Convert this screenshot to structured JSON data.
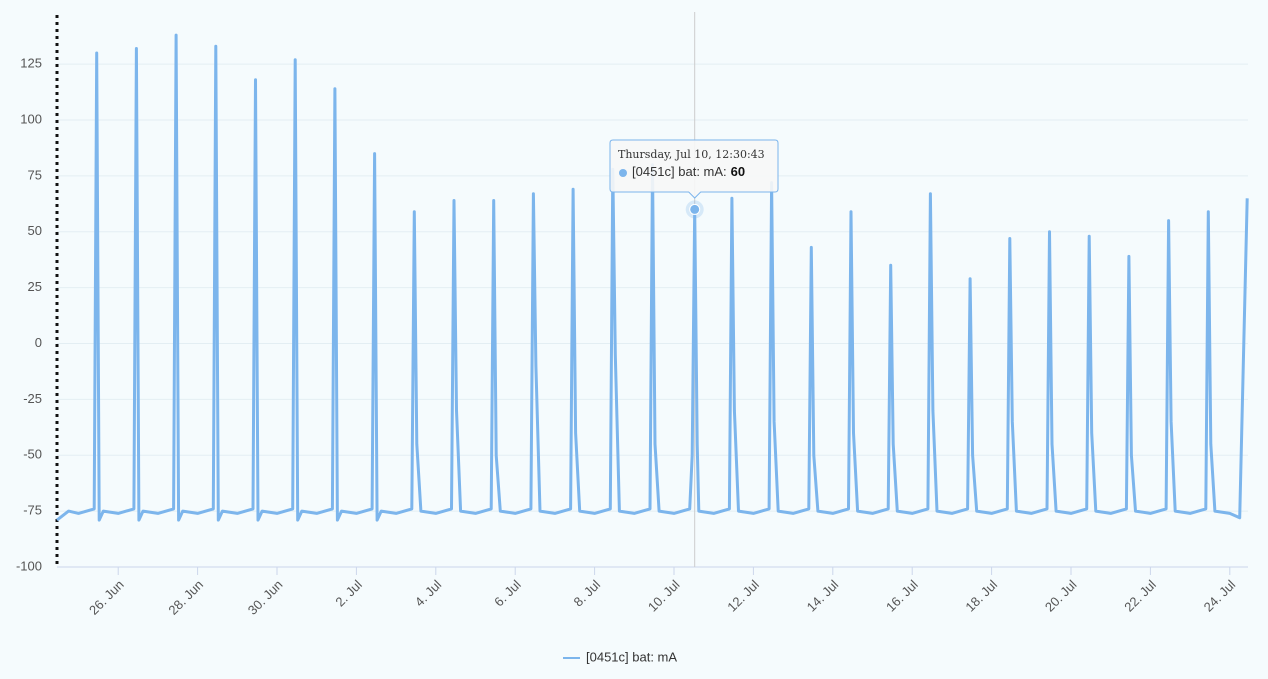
{
  "chart_data": {
    "type": "line",
    "xlim": [
      "06-24T11:00",
      "07-24T11:00"
    ],
    "ylim": [
      -100,
      147
    ],
    "yticks": [
      -100,
      -75,
      -50,
      -25,
      0,
      25,
      50,
      75,
      100,
      125
    ],
    "xticks": [
      {
        "value": "06-26",
        "label": "26. Jun"
      },
      {
        "value": "06-28",
        "label": "28. Jun"
      },
      {
        "value": "06-30",
        "label": "30. Jun"
      },
      {
        "value": "07-02",
        "label": "2. Jul"
      },
      {
        "value": "07-04",
        "label": "4. Jul"
      },
      {
        "value": "07-06",
        "label": "6. Jul"
      },
      {
        "value": "07-08",
        "label": "8. Jul"
      },
      {
        "value": "07-10",
        "label": "10. Jul"
      },
      {
        "value": "07-12",
        "label": "12. Jul"
      },
      {
        "value": "07-14",
        "label": "14. Jul"
      },
      {
        "value": "07-16",
        "label": "16. Jul"
      },
      {
        "value": "07-18",
        "label": "18. Jul"
      },
      {
        "value": "07-20",
        "label": "20. Jul"
      },
      {
        "value": "07-22",
        "label": "22. Jul"
      },
      {
        "value": "07-24",
        "label": "24. Jul"
      }
    ],
    "grid": true,
    "legend": "bottom",
    "x": [
      "06-24T11:00",
      "06-24T18:00",
      "06-25T00:00",
      "06-25T09:30",
      "06-25T11:00",
      "06-25T12:30",
      "06-25T15:00",
      "06-26T00:00",
      "06-26T09:30",
      "06-26T11:00",
      "06-26T12:30",
      "06-26T15:00",
      "06-27T00:00",
      "06-27T09:30",
      "06-27T11:00",
      "06-27T12:30",
      "06-27T15:00",
      "06-28T00:00",
      "06-28T09:30",
      "06-28T11:00",
      "06-28T12:30",
      "06-28T15:00",
      "06-29T00:00",
      "06-29T09:30",
      "06-29T11:00",
      "06-29T12:30",
      "06-29T15:00",
      "06-30T00:00",
      "06-30T09:30",
      "06-30T11:00",
      "06-30T12:30",
      "06-30T15:00",
      "07-01T00:00",
      "07-01T09:30",
      "07-01T11:00",
      "07-01T12:30",
      "07-01T15:00",
      "07-02T00:00",
      "07-02T09:30",
      "07-02T11:00",
      "07-02T12:30",
      "07-02T15:00",
      "07-03T00:00",
      "07-03T09:30",
      "07-03T11:00",
      "07-03T12:30",
      "07-03T15:00",
      "07-04T00:00",
      "07-04T09:30",
      "07-04T11:00",
      "07-04T12:30",
      "07-04T15:00",
      "07-05T00:00",
      "07-05T09:30",
      "07-05T11:00",
      "07-05T12:30",
      "07-05T15:00",
      "07-06T00:00",
      "07-06T09:30",
      "07-06T11:00",
      "07-06T12:30",
      "07-06T15:00",
      "07-07T00:00",
      "07-07T09:30",
      "07-07T11:00",
      "07-07T12:30",
      "07-07T15:00",
      "07-08T00:00",
      "07-08T09:30",
      "07-08T11:00",
      "07-08T12:30",
      "07-08T15:00",
      "07-09T00:00",
      "07-09T09:30",
      "07-09T11:00",
      "07-09T12:30",
      "07-09T15:00",
      "07-10T00:00",
      "07-10T09:30",
      "07-10T11:00",
      "07-10T12:30:43",
      "07-10T14:00",
      "07-10T15:00",
      "07-11T00:00",
      "07-11T09:30",
      "07-11T11:00",
      "07-11T12:30",
      "07-11T15:00",
      "07-12T00:00",
      "07-12T09:30",
      "07-12T11:00",
      "07-12T12:30",
      "07-12T15:00",
      "07-13T00:00",
      "07-13T09:30",
      "07-13T11:00",
      "07-13T12:30",
      "07-13T15:00",
      "07-14T00:00",
      "07-14T09:30",
      "07-14T11:00",
      "07-14T12:30",
      "07-14T15:00",
      "07-15T00:00",
      "07-15T09:30",
      "07-15T11:00",
      "07-15T12:30",
      "07-15T15:00",
      "07-16T00:00",
      "07-16T09:30",
      "07-16T11:00",
      "07-16T12:30",
      "07-16T15:00",
      "07-17T00:00",
      "07-17T09:30",
      "07-17T11:00",
      "07-17T12:30",
      "07-17T15:00",
      "07-18T00:00",
      "07-18T09:30",
      "07-18T11:00",
      "07-18T12:30",
      "07-18T15:00",
      "07-19T00:00",
      "07-19T09:30",
      "07-19T11:00",
      "07-19T12:30",
      "07-19T15:00",
      "07-20T00:00",
      "07-20T09:30",
      "07-20T11:00",
      "07-20T12:30",
      "07-20T15:00",
      "07-21T00:00",
      "07-21T09:30",
      "07-21T11:00",
      "07-21T12:30",
      "07-21T15:00",
      "07-22T00:00",
      "07-22T09:30",
      "07-22T11:00",
      "07-22T12:30",
      "07-22T15:00",
      "07-23T00:00",
      "07-23T09:30",
      "07-23T11:00",
      "07-23T12:30",
      "07-23T15:00",
      "07-24T00:00",
      "07-24T06:00",
      "07-24T10:30"
    ],
    "series": [
      {
        "name": "[0451c] bat: mA",
        "color": "#7cb5ec",
        "values": [
          -79,
          -75,
          -76,
          -74,
          130,
          -79,
          -75,
          -76,
          -74,
          132,
          -79,
          -75,
          -76,
          -74,
          138,
          -79,
          -75,
          -76,
          -74,
          133,
          -79,
          -75,
          -76,
          -74,
          118,
          -79,
          -75,
          -76,
          -74,
          127,
          -79,
          -75,
          -76,
          -74,
          114,
          -79,
          -75,
          -76,
          -74,
          85,
          -79,
          -75,
          -76,
          -74,
          59,
          -45,
          -75,
          -76,
          -74,
          64,
          -30,
          -75,
          -76,
          -74,
          64,
          -50,
          -75,
          -76,
          -74,
          67,
          -10,
          -75,
          -76,
          -74,
          69,
          -40,
          -75,
          -76,
          -74,
          78,
          -5,
          -75,
          -76,
          -74,
          80,
          -45,
          -75,
          -76,
          -74,
          -50,
          60,
          -45,
          -75,
          -76,
          -74,
          65,
          -30,
          -75,
          -76,
          -74,
          72,
          -35,
          -75,
          -76,
          -74,
          43,
          -50,
          -75,
          -76,
          -74,
          59,
          -40,
          -75,
          -76,
          -74,
          35,
          -45,
          -75,
          -76,
          -74,
          67,
          -30,
          -75,
          -76,
          -74,
          29,
          -50,
          -75,
          -76,
          -74,
          47,
          -35,
          -75,
          -76,
          -74,
          50,
          -45,
          -75,
          -76,
          -74,
          48,
          -40,
          -75,
          -76,
          -74,
          39,
          -50,
          -75,
          -76,
          -74,
          55,
          -35,
          -75,
          -76,
          -74,
          59,
          -45,
          -75,
          -76,
          -78,
          65
        ]
      }
    ],
    "tooltip": {
      "title": "Thursday, Jul 10, 12:30:43",
      "label": "[0451c] bat: mA:",
      "value": 60
    }
  }
}
